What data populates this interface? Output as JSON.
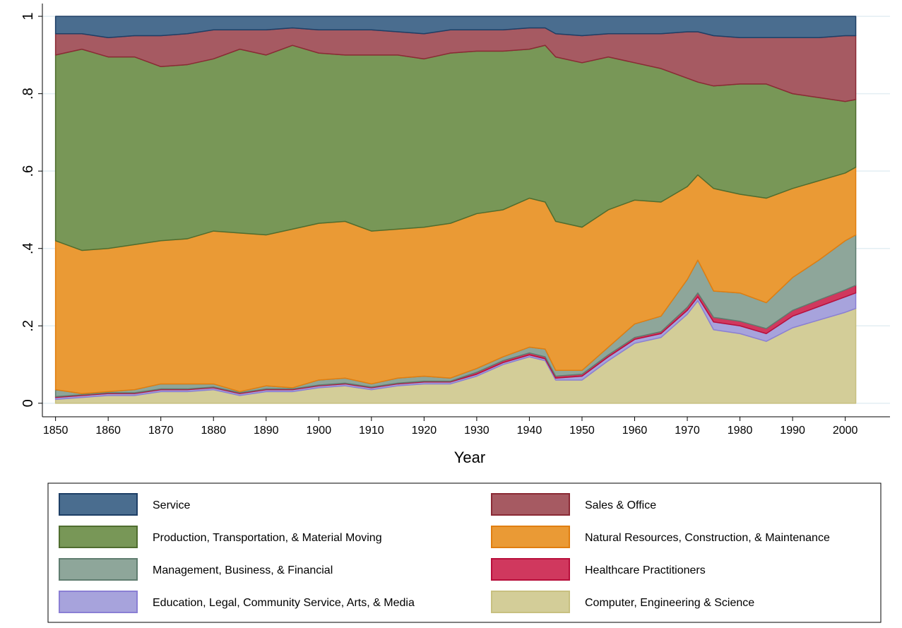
{
  "chart_data": {
    "type": "stacked_area",
    "x_label": "Year",
    "x": [
      1850,
      1855,
      1860,
      1865,
      1870,
      1875,
      1880,
      1885,
      1890,
      1895,
      1900,
      1905,
      1910,
      1915,
      1920,
      1925,
      1930,
      1935,
      1940,
      1943,
      1945,
      1950,
      1955,
      1960,
      1965,
      1970,
      1972,
      1975,
      1980,
      1985,
      1990,
      1995,
      2000,
      2002
    ],
    "xlim": [
      1847.5,
      2008.5
    ],
    "xticks": [
      1850,
      1860,
      1870,
      1880,
      1890,
      1900,
      1910,
      1920,
      1930,
      1940,
      1950,
      1960,
      1970,
      1980,
      1990,
      2000
    ],
    "ylim": [
      -0.035,
      1.033
    ],
    "yticks": [
      {
        "value": 0,
        "label": "0"
      },
      {
        "value": 0.2,
        "label": ".2"
      },
      {
        "value": 0.4,
        "label": ".4"
      },
      {
        "value": 0.6,
        "label": ".6"
      },
      {
        "value": 0.8,
        "label": ".8"
      },
      {
        "value": 1,
        "label": "1"
      }
    ],
    "grid": true,
    "legend_position": "bottom",
    "series": [
      {
        "name": "Service",
        "color": "#4a6d8f",
        "edge_color": "#1e3f66",
        "values": [
          0.045,
          0.045,
          0.055,
          0.05,
          0.05,
          0.045,
          0.035,
          0.035,
          0.035,
          0.03,
          0.035,
          0.035,
          0.035,
          0.04,
          0.045,
          0.035,
          0.035,
          0.035,
          0.03,
          0.03,
          0.045,
          0.05,
          0.045,
          0.045,
          0.045,
          0.04,
          0.04,
          0.05,
          0.055,
          0.055,
          0.055,
          0.055,
          0.05,
          0.05
        ]
      },
      {
        "name": "Sales & Office",
        "color": "#a65a62",
        "edge_color": "#8b2a35",
        "values": [
          0.055,
          0.04,
          0.05,
          0.055,
          0.08,
          0.08,
          0.075,
          0.05,
          0.065,
          0.045,
          0.06,
          0.065,
          0.065,
          0.06,
          0.065,
          0.06,
          0.055,
          0.055,
          0.055,
          0.045,
          0.06,
          0.07,
          0.06,
          0.075,
          0.09,
          0.12,
          0.13,
          0.13,
          0.12,
          0.12,
          0.145,
          0.155,
          0.17,
          0.165
        ]
      },
      {
        "name": "Production, Transportation, & Material Moving",
        "color": "#789757",
        "edge_color": "#4f6d2f",
        "values": [
          0.48,
          0.52,
          0.495,
          0.485,
          0.45,
          0.45,
          0.445,
          0.475,
          0.465,
          0.475,
          0.44,
          0.43,
          0.455,
          0.45,
          0.435,
          0.44,
          0.42,
          0.41,
          0.385,
          0.405,
          0.425,
          0.425,
          0.395,
          0.355,
          0.345,
          0.28,
          0.24,
          0.265,
          0.285,
          0.295,
          0.245,
          0.215,
          0.185,
          0.175
        ]
      },
      {
        "name": "Natural Resources, Construction, & Maintenance",
        "color": "#ea9a35",
        "edge_color": "#e07e10",
        "values": [
          0.385,
          0.37,
          0.37,
          0.375,
          0.37,
          0.375,
          0.395,
          0.41,
          0.39,
          0.41,
          0.405,
          0.405,
          0.395,
          0.385,
          0.385,
          0.4,
          0.4,
          0.38,
          0.385,
          0.38,
          0.385,
          0.37,
          0.355,
          0.32,
          0.295,
          0.24,
          0.22,
          0.265,
          0.255,
          0.27,
          0.23,
          0.205,
          0.175,
          0.175
        ]
      },
      {
        "name": "Management, Business, & Financial",
        "color": "#8ea69a",
        "edge_color": "#607d70",
        "values": [
          0.018,
          0.003,
          0.003,
          0.008,
          0.013,
          0.013,
          0.008,
          0.003,
          0.008,
          0.003,
          0.013,
          0.013,
          0.008,
          0.013,
          0.013,
          0.008,
          0.01,
          0.01,
          0.015,
          0.02,
          0.015,
          0.01,
          0.02,
          0.035,
          0.04,
          0.072,
          0.085,
          0.068,
          0.073,
          0.067,
          0.085,
          0.103,
          0.127,
          0.13
        ]
      },
      {
        "name": "Healthcare Practitioners",
        "color": "#d0385e",
        "edge_color": "#b80f3b",
        "values": [
          0.002,
          0.002,
          0.002,
          0.002,
          0.002,
          0.002,
          0.002,
          0.002,
          0.002,
          0.002,
          0.002,
          0.002,
          0.002,
          0.002,
          0.002,
          0.002,
          0.005,
          0.005,
          0.005,
          0.005,
          0.005,
          0.005,
          0.005,
          0.005,
          0.005,
          0.008,
          0.01,
          0.012,
          0.012,
          0.013,
          0.015,
          0.017,
          0.018,
          0.02
        ]
      },
      {
        "name": "Education, Legal, Community Service, Arts, & Media",
        "color": "#a7a3dc",
        "edge_color": "#8a7fd4",
        "values": [
          0.005,
          0.005,
          0.005,
          0.005,
          0.005,
          0.005,
          0.005,
          0.005,
          0.005,
          0.005,
          0.005,
          0.005,
          0.005,
          0.005,
          0.005,
          0.005,
          0.005,
          0.005,
          0.005,
          0.005,
          0.005,
          0.01,
          0.01,
          0.01,
          0.01,
          0.01,
          0.01,
          0.02,
          0.02,
          0.02,
          0.03,
          0.035,
          0.04,
          0.04
        ]
      },
      {
        "name": "Computer, Engineering & Science",
        "color": "#d3cd98",
        "edge_color": "#c8c080",
        "values": [
          0.01,
          0.015,
          0.02,
          0.02,
          0.03,
          0.03,
          0.035,
          0.02,
          0.03,
          0.03,
          0.04,
          0.045,
          0.035,
          0.045,
          0.05,
          0.05,
          0.07,
          0.1,
          0.12,
          0.11,
          0.06,
          0.06,
          0.11,
          0.155,
          0.17,
          0.23,
          0.265,
          0.19,
          0.18,
          0.16,
          0.195,
          0.215,
          0.235,
          0.245
        ]
      }
    ]
  }
}
